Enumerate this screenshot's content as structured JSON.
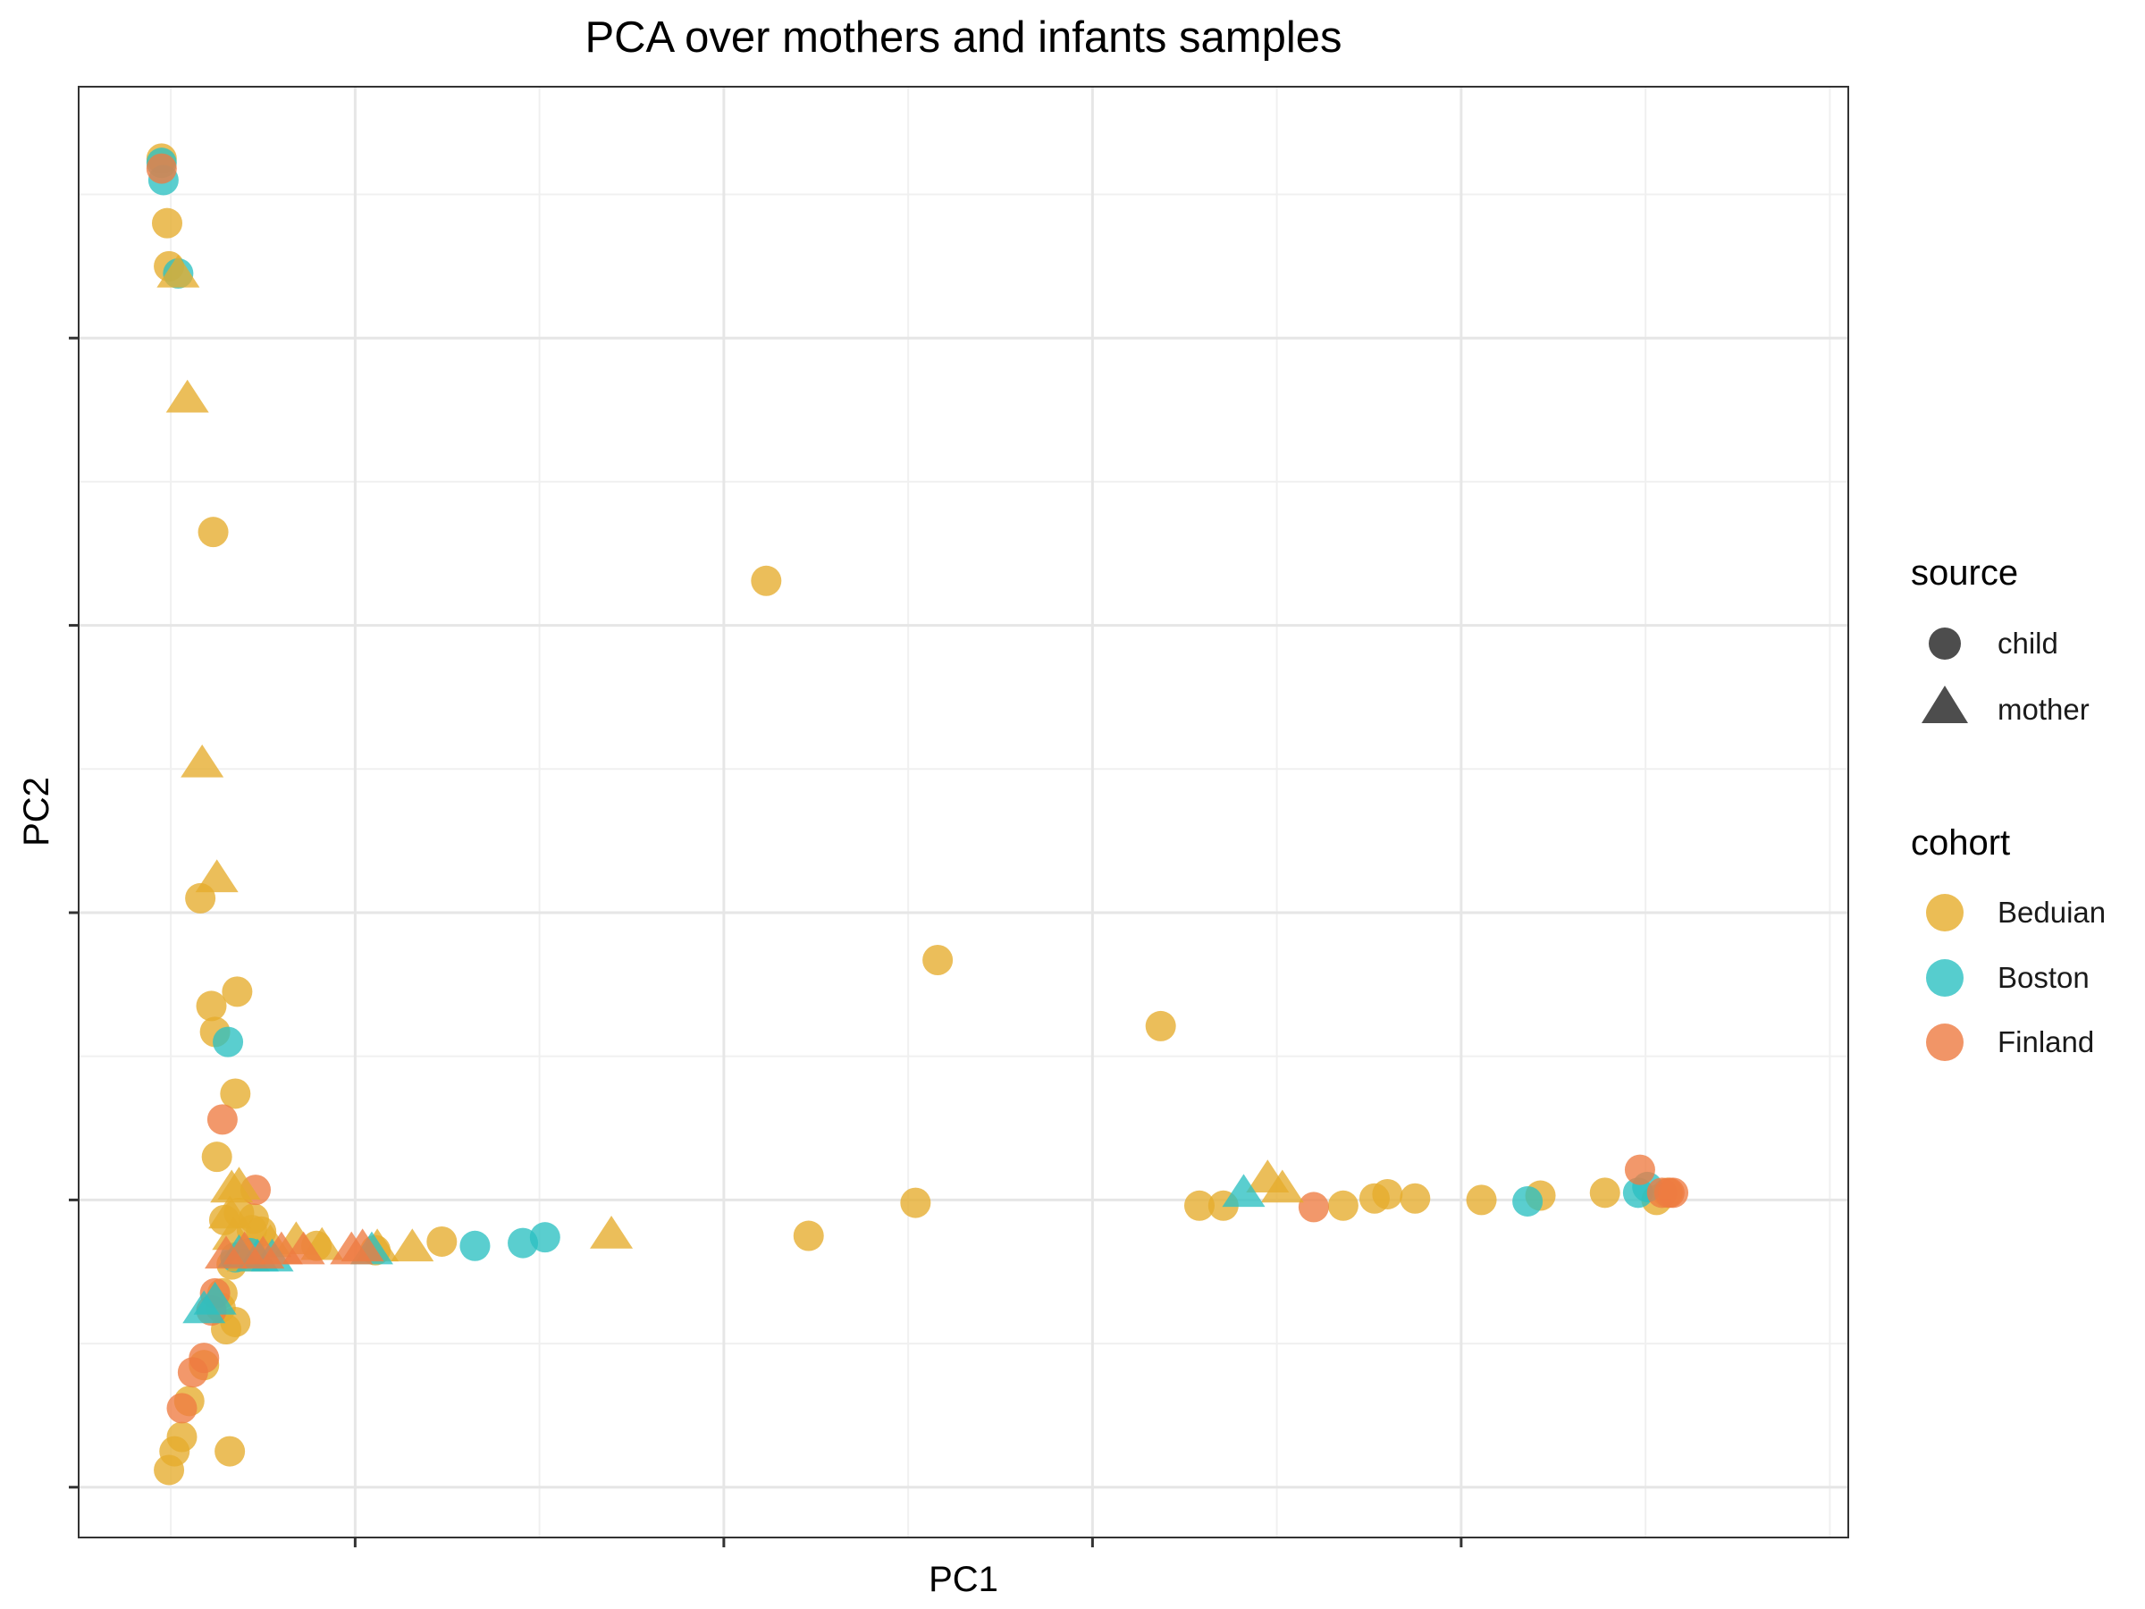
{
  "chart_data": {
    "type": "scatter",
    "title": "PCA over mothers and infants samples",
    "xlabel": "PC1",
    "ylabel": "PC2",
    "xlim": [
      -0.5,
      9.1
    ],
    "ylim": [
      -0.35,
      9.75
    ],
    "x_major_ticks": [
      1,
      3,
      5,
      7
    ],
    "y_major_ticks": [
      0,
      2,
      4,
      6,
      8
    ],
    "x_minor_ticks": [
      0,
      2,
      4,
      6,
      8,
      9
    ],
    "y_minor_ticks": [
      1,
      3,
      5,
      7,
      9
    ],
    "tick_labels_shown": false,
    "grid": true,
    "legend_position": "right",
    "colors": {
      "Beduian": "#E6AC2B",
      "Boston": "#2CC0C2",
      "Finland": "#EE7B41"
    },
    "legends": {
      "source": {
        "title": "source",
        "items": [
          {
            "label": "child",
            "shape": "circle"
          },
          {
            "label": "mother",
            "shape": "triangle"
          }
        ]
      },
      "cohort": {
        "title": "cohort",
        "items": [
          {
            "label": "Beduian",
            "color": "#E6AC2B"
          },
          {
            "label": "Boston",
            "color": "#2CC0C2"
          },
          {
            "label": "Finland",
            "color": "#EE7B41"
          }
        ]
      }
    },
    "series": [
      {
        "name": "Beduian",
        "source": "child",
        "points": [
          [
            -0.05,
            9.25
          ],
          [
            -0.02,
            8.8
          ],
          [
            -0.01,
            8.5
          ],
          [
            0.23,
            6.65
          ],
          [
            0.16,
            4.1
          ],
          [
            0.22,
            3.35
          ],
          [
            0.24,
            3.17
          ],
          [
            0.36,
            3.45
          ],
          [
            0.35,
            2.74
          ],
          [
            0.25,
            2.3
          ],
          [
            0.29,
            1.86
          ],
          [
            0.37,
            1.91
          ],
          [
            0.44,
            1.79
          ],
          [
            0.45,
            1.87
          ],
          [
            0.49,
            1.78
          ],
          [
            0.79,
            1.68
          ],
          [
            1.11,
            1.65
          ],
          [
            1.47,
            1.71
          ],
          [
            3.23,
            6.31
          ],
          [
            3.46,
            1.75
          ],
          [
            4.04,
            1.98
          ],
          [
            4.16,
            3.67
          ],
          [
            5.37,
            3.21
          ],
          [
            5.58,
            1.96
          ],
          [
            5.71,
            1.96
          ],
          [
            6.36,
            1.96
          ],
          [
            6.53,
            2.01
          ],
          [
            6.6,
            2.04
          ],
          [
            6.75,
            2.01
          ],
          [
            7.11,
            2.0
          ],
          [
            7.43,
            2.03
          ],
          [
            7.78,
            2.05
          ],
          [
            8.06,
            2.0
          ],
          [
            8.12,
            2.05
          ],
          [
            0.3,
            1.1
          ],
          [
            0.35,
            1.15
          ],
          [
            0.18,
            0.85
          ],
          [
            0.1,
            0.6
          ],
          [
            0.06,
            0.35
          ],
          [
            0.02,
            0.25
          ],
          [
            -0.01,
            0.12
          ],
          [
            0.32,
            0.25
          ],
          [
            0.28,
            1.35
          ],
          [
            0.33,
            1.55
          ],
          [
            0.27,
            1.25
          ]
        ]
      },
      {
        "name": "Boston",
        "source": "child",
        "points": [
          [
            -0.05,
            9.22
          ],
          [
            -0.04,
            9.1
          ],
          [
            0.04,
            8.45
          ],
          [
            0.31,
            3.1
          ],
          [
            0.35,
            1.6
          ],
          [
            0.43,
            1.63
          ],
          [
            1.65,
            1.68
          ],
          [
            1.91,
            1.7
          ],
          [
            2.03,
            1.74
          ],
          [
            7.36,
            1.99
          ],
          [
            7.96,
            2.05
          ],
          [
            8.01,
            2.09
          ]
        ]
      },
      {
        "name": "Finland",
        "source": "child",
        "points": [
          [
            -0.05,
            9.18
          ],
          [
            0.28,
            2.56
          ],
          [
            0.46,
            2.07
          ],
          [
            0.24,
            1.35
          ],
          [
            0.22,
            1.23
          ],
          [
            0.18,
            0.9
          ],
          [
            0.12,
            0.8
          ],
          [
            0.06,
            0.55
          ],
          [
            6.2,
            1.95
          ],
          [
            7.97,
            2.21
          ],
          [
            8.09,
            2.05
          ],
          [
            8.13,
            2.05
          ],
          [
            8.15,
            2.05
          ]
        ]
      },
      {
        "name": "Beduian",
        "source": "mother",
        "points": [
          [
            0.04,
            8.45
          ],
          [
            0.09,
            7.58
          ],
          [
            0.17,
            5.04
          ],
          [
            0.25,
            4.24
          ],
          [
            0.33,
            2.08
          ],
          [
            0.37,
            2.1
          ],
          [
            0.32,
            1.9
          ],
          [
            0.34,
            1.75
          ],
          [
            0.42,
            1.6
          ],
          [
            0.54,
            1.7
          ],
          [
            0.68,
            1.72
          ],
          [
            0.82,
            1.68
          ],
          [
            1.12,
            1.67
          ],
          [
            1.31,
            1.67
          ],
          [
            2.39,
            1.76
          ],
          [
            5.95,
            2.15
          ],
          [
            6.03,
            2.08
          ]
        ]
      },
      {
        "name": "Boston",
        "source": "mother",
        "points": [
          [
            0.18,
            1.24
          ],
          [
            0.24,
            1.3
          ],
          [
            0.37,
            1.63
          ],
          [
            0.47,
            1.6
          ],
          [
            0.55,
            1.6
          ],
          [
            1.09,
            1.65
          ],
          [
            5.82,
            2.05
          ]
        ]
      },
      {
        "name": "Finland",
        "source": "mother",
        "points": [
          [
            0.3,
            1.62
          ],
          [
            0.4,
            1.65
          ],
          [
            0.5,
            1.62
          ],
          [
            0.6,
            1.65
          ],
          [
            0.72,
            1.65
          ],
          [
            0.98,
            1.65
          ],
          [
            1.04,
            1.67
          ]
        ]
      }
    ]
  }
}
